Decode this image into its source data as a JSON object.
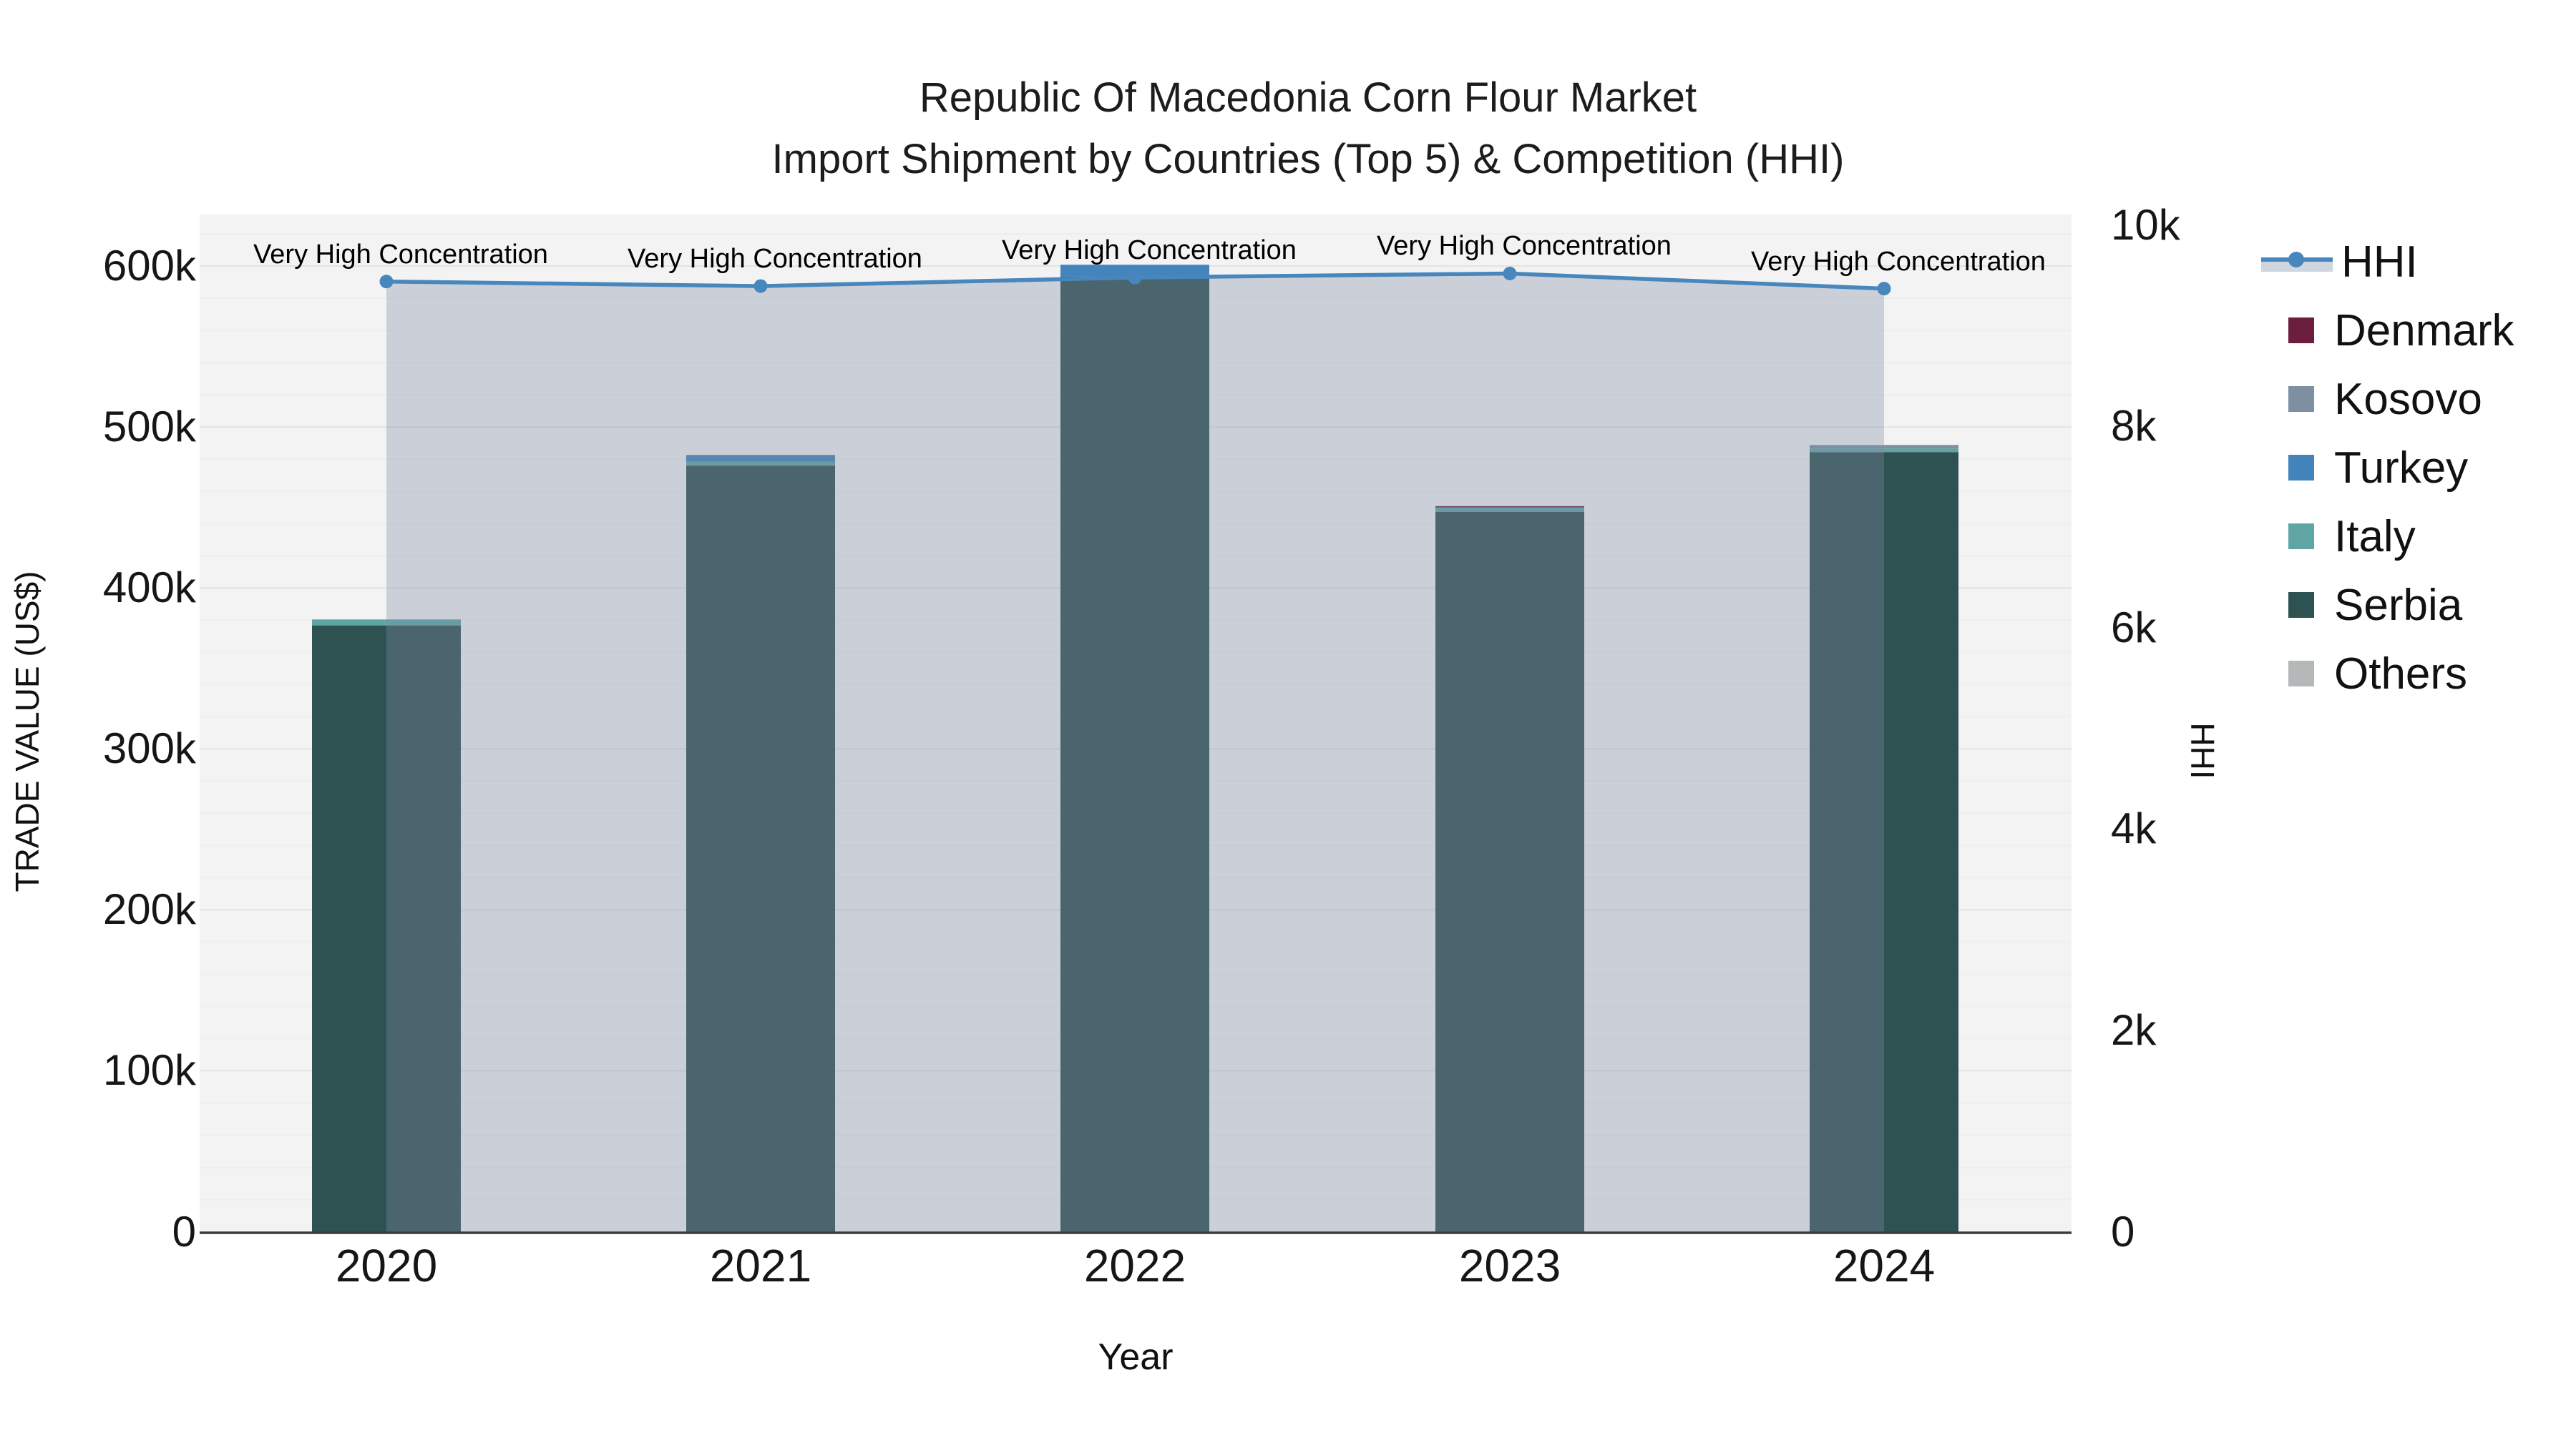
{
  "title": {
    "line1": "Republic Of Macedonia Corn Flour Market",
    "line2": "Import Shipment by Countries (Top 5) & Competition (HHI)"
  },
  "x_axis": {
    "label": "Year",
    "categories": [
      "2020",
      "2021",
      "2022",
      "2023",
      "2024"
    ]
  },
  "y_axis_left": {
    "label": "TRADE VALUE (US$)",
    "tick_labels": [
      "0",
      "100k",
      "200k",
      "300k",
      "400k",
      "500k",
      "600k"
    ],
    "tick_values": [
      0,
      100000,
      200000,
      300000,
      400000,
      500000,
      600000
    ]
  },
  "y_axis_right": {
    "label": "HHI",
    "tick_labels": [
      "0",
      "2k",
      "4k",
      "6k",
      "8k",
      "10k"
    ],
    "tick_values": [
      0,
      2000,
      4000,
      6000,
      8000,
      10000
    ]
  },
  "legend": {
    "items": [
      {
        "label": "HHI",
        "type": "line",
        "color": "#4787bd"
      },
      {
        "label": "Denmark",
        "type": "swatch",
        "color": "#6b1e3e"
      },
      {
        "label": "Kosovo",
        "type": "swatch",
        "color": "#7e90a1"
      },
      {
        "label": "Turkey",
        "type": "swatch",
        "color": "#4484bc"
      },
      {
        "label": "Italy",
        "type": "swatch",
        "color": "#5fa5a3"
      },
      {
        "label": "Serbia",
        "type": "swatch",
        "color": "#2e5151"
      },
      {
        "label": "Others",
        "type": "swatch",
        "color": "#b4b8b8"
      }
    ]
  },
  "colors": {
    "plot_bg": "#f3f3f3",
    "grid_major": "#e3e3e3",
    "grid_minor": "#eeeeee",
    "axis_line": "#3d3d3d",
    "hhi_line": "#4787bd",
    "hhi_fill": "rgba(125,140,165,0.35)",
    "legend_band": "#d0d6e0"
  },
  "chart_data": {
    "type": "bar+line",
    "stacked": true,
    "title": "Republic Of Macedonia Corn Flour Market — Import Shipment by Countries (Top 5) & Competition (HHI)",
    "xlabel": "Year",
    "ylabel": "TRADE VALUE (US$)",
    "y2label": "HHI",
    "categories": [
      "2020",
      "2021",
      "2022",
      "2023",
      "2024"
    ],
    "ylim": [
      0,
      632000
    ],
    "y2lim": [
      0,
      10106
    ],
    "grid": true,
    "legend_position": "top-right",
    "bar_series": [
      {
        "name": "Denmark",
        "color": "#6b1e3e",
        "values": [
          0,
          0,
          0,
          800,
          0
        ]
      },
      {
        "name": "Kosovo",
        "color": "#7e90a1",
        "values": [
          0,
          0,
          0,
          0,
          2200
        ]
      },
      {
        "name": "Turkey",
        "color": "#4484bc",
        "values": [
          0,
          4100,
          7400,
          0,
          0
        ]
      },
      {
        "name": "Italy",
        "color": "#5fa5a3",
        "values": [
          3700,
          2500,
          0,
          2700,
          2200
        ]
      },
      {
        "name": "Serbia",
        "color": "#2e5151",
        "values": [
          376700,
          476000,
          593400,
          447300,
          484400
        ]
      },
      {
        "name": "Others",
        "color": "#b4b8b8",
        "values": [
          0,
          0,
          0,
          0,
          0
        ]
      }
    ],
    "stack_order_bottom_to_top": [
      "Others",
      "Serbia",
      "Italy",
      "Turkey",
      "Kosovo",
      "Denmark"
    ],
    "bar_totals": [
      380400,
      482600,
      600800,
      450800,
      488800
    ],
    "line_series": {
      "name": "HHI",
      "color": "#4787bd",
      "values": [
        9440,
        9395,
        9480,
        9520,
        9370
      ],
      "fill_to_zero": true
    },
    "annotations": [
      "Very High Concentration",
      "Very High Concentration",
      "Very High Concentration",
      "Very High Concentration",
      "Very High Concentration"
    ]
  }
}
